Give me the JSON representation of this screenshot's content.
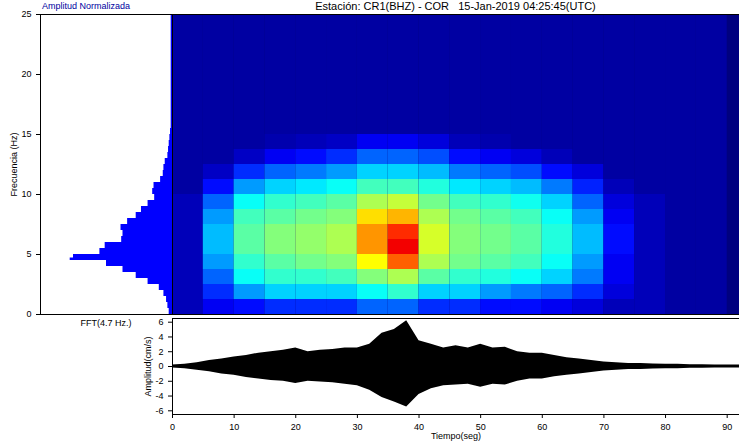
{
  "chart_data": [
    {
      "type": "spectrogram",
      "title": "Estación: CR1(BHZ) - COR   15-Jan-2019 04:25:45(UTC)",
      "xlim": [
        0,
        92
      ],
      "ylim": [
        0,
        25
      ],
      "tick_labels": false,
      "time_bins": [
        0,
        5,
        10,
        15,
        20,
        25,
        30,
        35,
        40,
        45,
        50,
        55,
        60,
        65,
        70,
        75,
        80,
        85,
        90
      ],
      "freq_bins": [
        0,
        1.25,
        2.5,
        3.75,
        5,
        6.25,
        7.5,
        8.75,
        10,
        11.25,
        12.5,
        13.75,
        15,
        16.25,
        17.5,
        18.75,
        20,
        21.25,
        22.5,
        23.75,
        25
      ],
      "color_range": [
        0,
        1
      ],
      "cells": [
        [
          0.05,
          0.1,
          0.12,
          0.15,
          0.15,
          0.15,
          0.2,
          0.2,
          0.15,
          0.15,
          0.12,
          0.12,
          0.1,
          0.08,
          0.05,
          0.05,
          0.03,
          0.03
        ],
        [
          0.05,
          0.15,
          0.25,
          0.3,
          0.3,
          0.3,
          0.35,
          0.4,
          0.3,
          0.3,
          0.25,
          0.22,
          0.2,
          0.15,
          0.08,
          0.05,
          0.03,
          0.03
        ],
        [
          0.05,
          0.2,
          0.35,
          0.4,
          0.4,
          0.42,
          0.5,
          0.55,
          0.45,
          0.4,
          0.38,
          0.35,
          0.3,
          0.22,
          0.1,
          0.05,
          0.03,
          0.03
        ],
        [
          0.05,
          0.25,
          0.4,
          0.45,
          0.48,
          0.5,
          0.65,
          0.8,
          0.55,
          0.48,
          0.45,
          0.42,
          0.35,
          0.25,
          0.1,
          0.05,
          0.03,
          0.03
        ],
        [
          0.05,
          0.28,
          0.45,
          0.5,
          0.52,
          0.55,
          0.75,
          0.9,
          0.6,
          0.5,
          0.48,
          0.45,
          0.38,
          0.28,
          0.12,
          0.05,
          0.03,
          0.03
        ],
        [
          0.05,
          0.28,
          0.45,
          0.5,
          0.52,
          0.55,
          0.75,
          0.85,
          0.6,
          0.5,
          0.48,
          0.45,
          0.38,
          0.28,
          0.12,
          0.05,
          0.03,
          0.03
        ],
        [
          0.05,
          0.25,
          0.42,
          0.45,
          0.48,
          0.5,
          0.68,
          0.72,
          0.55,
          0.48,
          0.45,
          0.42,
          0.35,
          0.25,
          0.1,
          0.05,
          0.03,
          0.03
        ],
        [
          0.05,
          0.2,
          0.35,
          0.4,
          0.42,
          0.45,
          0.55,
          0.58,
          0.48,
          0.42,
          0.4,
          0.36,
          0.3,
          0.2,
          0.08,
          0.05,
          0.03,
          0.03
        ],
        [
          0.03,
          0.12,
          0.25,
          0.3,
          0.32,
          0.35,
          0.42,
          0.42,
          0.38,
          0.32,
          0.3,
          0.28,
          0.22,
          0.14,
          0.05,
          0.03,
          0.03,
          0.03
        ],
        [
          0.03,
          0.06,
          0.15,
          0.2,
          0.22,
          0.25,
          0.3,
          0.3,
          0.28,
          0.22,
          0.2,
          0.18,
          0.12,
          0.08,
          0.03,
          0.03,
          0.03,
          0.03
        ],
        [
          0.03,
          0.03,
          0.06,
          0.1,
          0.12,
          0.15,
          0.2,
          0.2,
          0.18,
          0.12,
          0.1,
          0.08,
          0.05,
          0.03,
          0.03,
          0.03,
          0.03,
          0.03
        ],
        [
          0.03,
          0.03,
          0.03,
          0.04,
          0.05,
          0.06,
          0.1,
          0.1,
          0.08,
          0.05,
          0.04,
          0.03,
          0.03,
          0.03,
          0.03,
          0.03,
          0.03,
          0.03
        ],
        [
          0.03,
          0.03,
          0.03,
          0.03,
          0.03,
          0.03,
          0.03,
          0.03,
          0.03,
          0.03,
          0.03,
          0.03,
          0.03,
          0.03,
          0.03,
          0.03,
          0.03,
          0.03
        ],
        [
          0.03,
          0.03,
          0.03,
          0.03,
          0.03,
          0.03,
          0.03,
          0.03,
          0.03,
          0.03,
          0.03,
          0.03,
          0.03,
          0.03,
          0.03,
          0.03,
          0.03,
          0.03
        ],
        [
          0.03,
          0.03,
          0.03,
          0.03,
          0.03,
          0.03,
          0.03,
          0.03,
          0.03,
          0.03,
          0.03,
          0.03,
          0.03,
          0.03,
          0.03,
          0.03,
          0.03,
          0.03
        ],
        [
          0.03,
          0.03,
          0.03,
          0.03,
          0.03,
          0.03,
          0.03,
          0.03,
          0.03,
          0.03,
          0.03,
          0.03,
          0.03,
          0.03,
          0.03,
          0.03,
          0.03,
          0.03
        ],
        [
          0.03,
          0.03,
          0.03,
          0.03,
          0.03,
          0.03,
          0.03,
          0.03,
          0.03,
          0.03,
          0.03,
          0.03,
          0.03,
          0.03,
          0.03,
          0.03,
          0.03,
          0.03
        ],
        [
          0.03,
          0.03,
          0.03,
          0.03,
          0.03,
          0.03,
          0.03,
          0.03,
          0.03,
          0.03,
          0.03,
          0.03,
          0.03,
          0.03,
          0.03,
          0.03,
          0.03,
          0.03
        ],
        [
          0.03,
          0.03,
          0.03,
          0.03,
          0.03,
          0.03,
          0.03,
          0.03,
          0.03,
          0.03,
          0.03,
          0.03,
          0.03,
          0.03,
          0.03,
          0.03,
          0.03,
          0.03
        ],
        [
          0.03,
          0.03,
          0.03,
          0.03,
          0.03,
          0.03,
          0.03,
          0.03,
          0.03,
          0.03,
          0.03,
          0.03,
          0.03,
          0.03,
          0.03,
          0.03,
          0.03,
          0.03
        ]
      ]
    },
    {
      "type": "area",
      "orientation": "horizontal",
      "title": "Amplitud Normalizada",
      "xlabel": "FFT(4.7 Hz.)",
      "ylabel": "Frecuencia (Hz)",
      "xlim": [
        0,
        1
      ],
      "ylim": [
        0,
        25
      ],
      "yticks": [
        0,
        5,
        10,
        15,
        20,
        25
      ],
      "tick_labels": "y",
      "color": "#0000ff",
      "frequency": [
        0,
        0.5,
        1,
        1.5,
        2,
        2.5,
        3,
        3.5,
        4,
        4.5,
        4.7,
        5,
        5.5,
        6,
        6.5,
        7,
        7.5,
        8,
        8.5,
        9,
        9.5,
        10,
        10.5,
        11,
        11.5,
        12,
        12.5,
        13,
        13.5,
        14,
        14.5,
        15,
        15.5,
        16,
        16.5,
        17,
        17.5,
        18,
        18.5,
        19,
        19.5,
        20,
        20.5,
        21,
        21.5,
        22,
        22.5,
        23,
        23.5,
        24,
        24.5,
        25
      ],
      "values": [
        0.02,
        0.03,
        0.04,
        0.05,
        0.08,
        0.12,
        0.25,
        0.3,
        0.45,
        0.55,
        1.0,
        0.5,
        0.6,
        0.42,
        0.35,
        0.4,
        0.38,
        0.3,
        0.25,
        0.22,
        0.15,
        0.12,
        0.18,
        0.1,
        0.08,
        0.06,
        0.07,
        0.04,
        0.03,
        0.03,
        0.02,
        0.02,
        0.01,
        0.01,
        0.01,
        0.01,
        0.01,
        0.01,
        0.01,
        0.01,
        0.01,
        0.01,
        0.01,
        0.01,
        0.01,
        0.01,
        0.01,
        0.01,
        0.01,
        0.01,
        0.01,
        0.01
      ]
    },
    {
      "type": "envelope",
      "xlabel": "Tiempo(seg)",
      "ylabel": "Amplitud(cm/s)",
      "xlim": [
        0,
        92
      ],
      "xticks": [
        0,
        10,
        20,
        30,
        40,
        50,
        60,
        70,
        80,
        90
      ],
      "ylim": [
        -6.5,
        6.5
      ],
      "yticks": [
        -6,
        -4,
        -2,
        0,
        2,
        4,
        6
      ],
      "color": "#000000",
      "x": [
        0,
        2,
        4,
        6,
        8,
        10,
        12,
        14,
        16,
        18,
        20,
        22,
        24,
        26,
        28,
        30,
        32,
        34,
        36,
        38,
        40,
        42,
        44,
        46,
        48,
        50,
        52,
        54,
        56,
        58,
        60,
        62,
        64,
        66,
        68,
        70,
        72,
        74,
        76,
        78,
        80,
        82,
        84,
        86,
        88,
        90,
        92
      ],
      "max": [
        0.2,
        0.3,
        0.5,
        0.8,
        1.0,
        1.3,
        1.5,
        1.8,
        2.0,
        2.2,
        2.5,
        2.0,
        2.2,
        2.3,
        2.5,
        2.5,
        3.0,
        4.5,
        5.0,
        6.2,
        3.5,
        3.0,
        2.5,
        2.8,
        2.5,
        3.0,
        2.5,
        2.6,
        2.0,
        1.8,
        1.8,
        1.5,
        1.2,
        1.0,
        0.8,
        0.6,
        0.5,
        0.4,
        0.4,
        0.35,
        0.3,
        0.3,
        0.25,
        0.25,
        0.2,
        0.2,
        0.2
      ],
      "min": [
        -0.2,
        -0.3,
        -0.5,
        -0.7,
        -1.0,
        -1.2,
        -1.5,
        -1.7,
        -1.9,
        -2.0,
        -2.3,
        -2.0,
        -2.1,
        -2.2,
        -2.4,
        -2.6,
        -3.2,
        -4.2,
        -4.8,
        -5.5,
        -3.8,
        -3.0,
        -2.6,
        -2.5,
        -2.4,
        -2.8,
        -2.4,
        -2.5,
        -2.0,
        -1.7,
        -1.7,
        -1.4,
        -1.2,
        -1.0,
        -0.8,
        -0.6,
        -0.5,
        -0.4,
        -0.4,
        -0.35,
        -0.3,
        -0.3,
        -0.25,
        -0.25,
        -0.2,
        -0.2,
        -0.2
      ]
    }
  ]
}
